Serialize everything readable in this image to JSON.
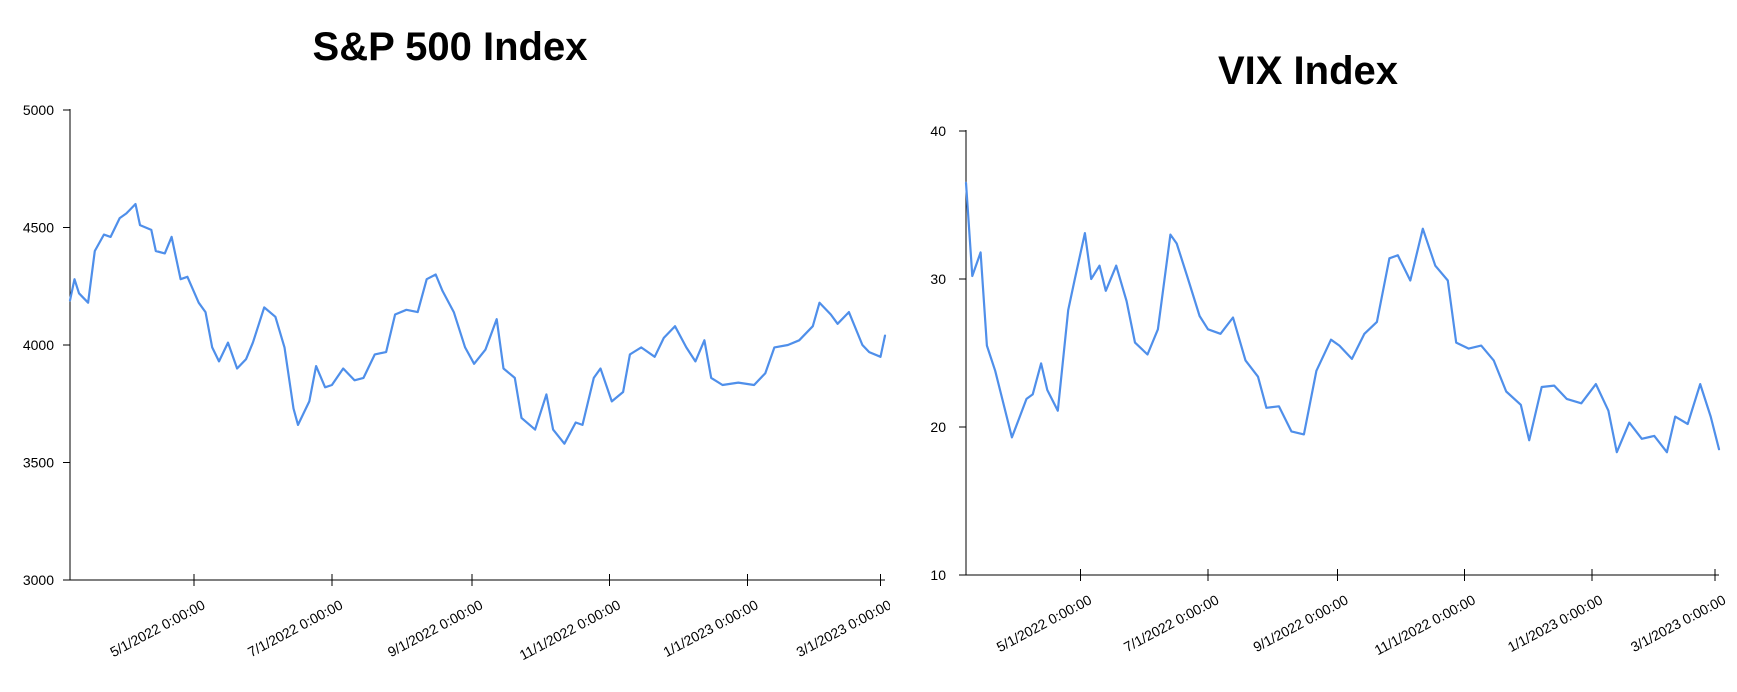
{
  "chart_data": [
    {
      "type": "line",
      "title": "S&P 500 Index",
      "xlabel": "",
      "ylabel": "",
      "ylim": [
        3000,
        5000
      ],
      "yticks": [
        3000,
        3500,
        4000,
        4500,
        5000
      ],
      "xlim": [
        "2022-03-07",
        "2023-03-03"
      ],
      "xticks": [
        "2022-05-01",
        "2022-07-01",
        "2022-09-01",
        "2022-11-01",
        "2023-01-01",
        "2023-03-01"
      ],
      "xtick_labels": [
        "5/1/2022 0:00:00",
        "7/1/2022 0:00:00",
        "9/1/2022 0:00:00",
        "11/1/2022 0:00:00",
        "1/1/2023 0:00:00",
        "3/1/2023 0:00:00"
      ],
      "grid": false,
      "color": "#4f8fea",
      "series": [
        {
          "x": [
            "2022-03-07",
            "2022-03-09",
            "2022-03-11",
            "2022-03-15",
            "2022-03-18",
            "2022-03-22",
            "2022-03-25",
            "2022-03-29",
            "2022-04-01",
            "2022-04-05",
            "2022-04-07",
            "2022-04-12",
            "2022-04-14",
            "2022-04-18",
            "2022-04-21",
            "2022-04-25",
            "2022-04-28",
            "2022-05-03",
            "2022-05-06",
            "2022-05-09",
            "2022-05-12",
            "2022-05-16",
            "2022-05-20",
            "2022-05-24",
            "2022-05-27",
            "2022-06-01",
            "2022-06-06",
            "2022-06-10",
            "2022-06-14",
            "2022-06-16",
            "2022-06-21",
            "2022-06-24",
            "2022-06-28",
            "2022-07-01",
            "2022-07-06",
            "2022-07-11",
            "2022-07-15",
            "2022-07-20",
            "2022-07-25",
            "2022-07-29",
            "2022-08-03",
            "2022-08-08",
            "2022-08-12",
            "2022-08-16",
            "2022-08-19",
            "2022-08-24",
            "2022-08-29",
            "2022-09-02",
            "2022-09-07",
            "2022-09-12",
            "2022-09-15",
            "2022-09-20",
            "2022-09-23",
            "2022-09-29",
            "2022-10-04",
            "2022-10-07",
            "2022-10-12",
            "2022-10-17",
            "2022-10-20",
            "2022-10-25",
            "2022-10-28",
            "2022-11-02",
            "2022-11-07",
            "2022-11-10",
            "2022-11-15",
            "2022-11-21",
            "2022-11-25",
            "2022-11-30",
            "2022-12-05",
            "2022-12-09",
            "2022-12-13",
            "2022-12-16",
            "2022-12-21",
            "2022-12-28",
            "2023-01-04",
            "2023-01-09",
            "2023-01-13",
            "2023-01-19",
            "2023-01-24",
            "2023-01-30",
            "2023-02-02",
            "2023-02-07",
            "2023-02-10",
            "2023-02-15",
            "2023-02-21",
            "2023-02-24",
            "2023-03-01",
            "2023-03-03"
          ],
          "y": [
            4190,
            4280,
            4220,
            4180,
            4400,
            4470,
            4460,
            4540,
            4560,
            4600,
            4510,
            4490,
            4400,
            4390,
            4460,
            4280,
            4290,
            4180,
            4140,
            3990,
            3930,
            4010,
            3900,
            3940,
            4010,
            4160,
            4120,
            3990,
            3730,
            3660,
            3760,
            3910,
            3820,
            3830,
            3900,
            3850,
            3860,
            3960,
            3970,
            4130,
            4150,
            4140,
            4280,
            4300,
            4230,
            4140,
            3990,
            3920,
            3980,
            4110,
            3900,
            3860,
            3690,
            3640,
            3790,
            3640,
            3580,
            3670,
            3660,
            3860,
            3900,
            3760,
            3800,
            3960,
            3990,
            3950,
            4030,
            4080,
            3990,
            3930,
            4020,
            3860,
            3830,
            3840,
            3830,
            3880,
            3990,
            4000,
            4020,
            4080,
            4180,
            4130,
            4090,
            4140,
            4000,
            3970,
            3950,
            4040
          ]
        }
      ]
    },
    {
      "type": "line",
      "title": "VIX Index",
      "xlabel": "",
      "ylabel": "",
      "ylim": [
        10,
        40
      ],
      "yticks": [
        10,
        20,
        30,
        40
      ],
      "xlim": [
        "2022-03-07",
        "2023-03-03"
      ],
      "xticks": [
        "2022-05-01",
        "2022-07-01",
        "2022-09-01",
        "2022-11-01",
        "2023-01-01",
        "2023-03-01"
      ],
      "xtick_labels": [
        "5/1/2022 0:00:00",
        "7/1/2022 0:00:00",
        "9/1/2022 0:00:00",
        "11/1/2022 0:00:00",
        "1/1/2023 0:00:00",
        "3/1/2023 0:00:00"
      ],
      "grid": false,
      "color": "#4f8fea",
      "series": [
        {
          "x": [
            "2022-03-07",
            "2022-03-10",
            "2022-03-14",
            "2022-03-17",
            "2022-03-21",
            "2022-03-24",
            "2022-03-29",
            "2022-04-01",
            "2022-04-05",
            "2022-04-08",
            "2022-04-12",
            "2022-04-15",
            "2022-04-20",
            "2022-04-25",
            "2022-04-28",
            "2022-05-03",
            "2022-05-06",
            "2022-05-10",
            "2022-05-13",
            "2022-05-18",
            "2022-05-23",
            "2022-05-27",
            "2022-06-02",
            "2022-06-07",
            "2022-06-13",
            "2022-06-16",
            "2022-06-21",
            "2022-06-27",
            "2022-07-01",
            "2022-07-07",
            "2022-07-13",
            "2022-07-19",
            "2022-07-25",
            "2022-07-29",
            "2022-08-04",
            "2022-08-10",
            "2022-08-16",
            "2022-08-22",
            "2022-08-29",
            "2022-09-02",
            "2022-09-08",
            "2022-09-14",
            "2022-09-20",
            "2022-09-26",
            "2022-09-30",
            "2022-10-06",
            "2022-10-12",
            "2022-10-18",
            "2022-10-24",
            "2022-10-28",
            "2022-11-03",
            "2022-11-09",
            "2022-11-15",
            "2022-11-21",
            "2022-11-28",
            "2022-12-02",
            "2022-12-08",
            "2022-12-14",
            "2022-12-20",
            "2022-12-27",
            "2023-01-03",
            "2023-01-09",
            "2023-01-13",
            "2023-01-19",
            "2023-01-25",
            "2023-01-31",
            "2023-02-06",
            "2023-02-10",
            "2023-02-16",
            "2023-02-22",
            "2023-02-27",
            "2023-03-03"
          ],
          "y": [
            36.5,
            30.2,
            31.8,
            25.5,
            23.8,
            22.1,
            19.3,
            20.4,
            21.9,
            22.2,
            24.3,
            22.5,
            21.1,
            27.9,
            29.9,
            33.1,
            30.0,
            30.9,
            29.2,
            30.9,
            28.5,
            25.7,
            24.9,
            26.6,
            33.0,
            32.4,
            30.2,
            27.5,
            26.6,
            26.3,
            27.4,
            24.5,
            23.4,
            21.3,
            21.4,
            19.7,
            19.5,
            23.8,
            25.9,
            25.5,
            24.6,
            26.3,
            27.1,
            31.4,
            31.6,
            29.9,
            33.4,
            30.9,
            29.9,
            25.7,
            25.3,
            25.5,
            24.5,
            22.4,
            21.5,
            19.1,
            22.7,
            22.8,
            21.9,
            21.6,
            22.9,
            21.1,
            18.3,
            20.3,
            19.2,
            19.4,
            18.3,
            20.7,
            20.2,
            22.9,
            20.7,
            18.5
          ]
        }
      ]
    }
  ]
}
